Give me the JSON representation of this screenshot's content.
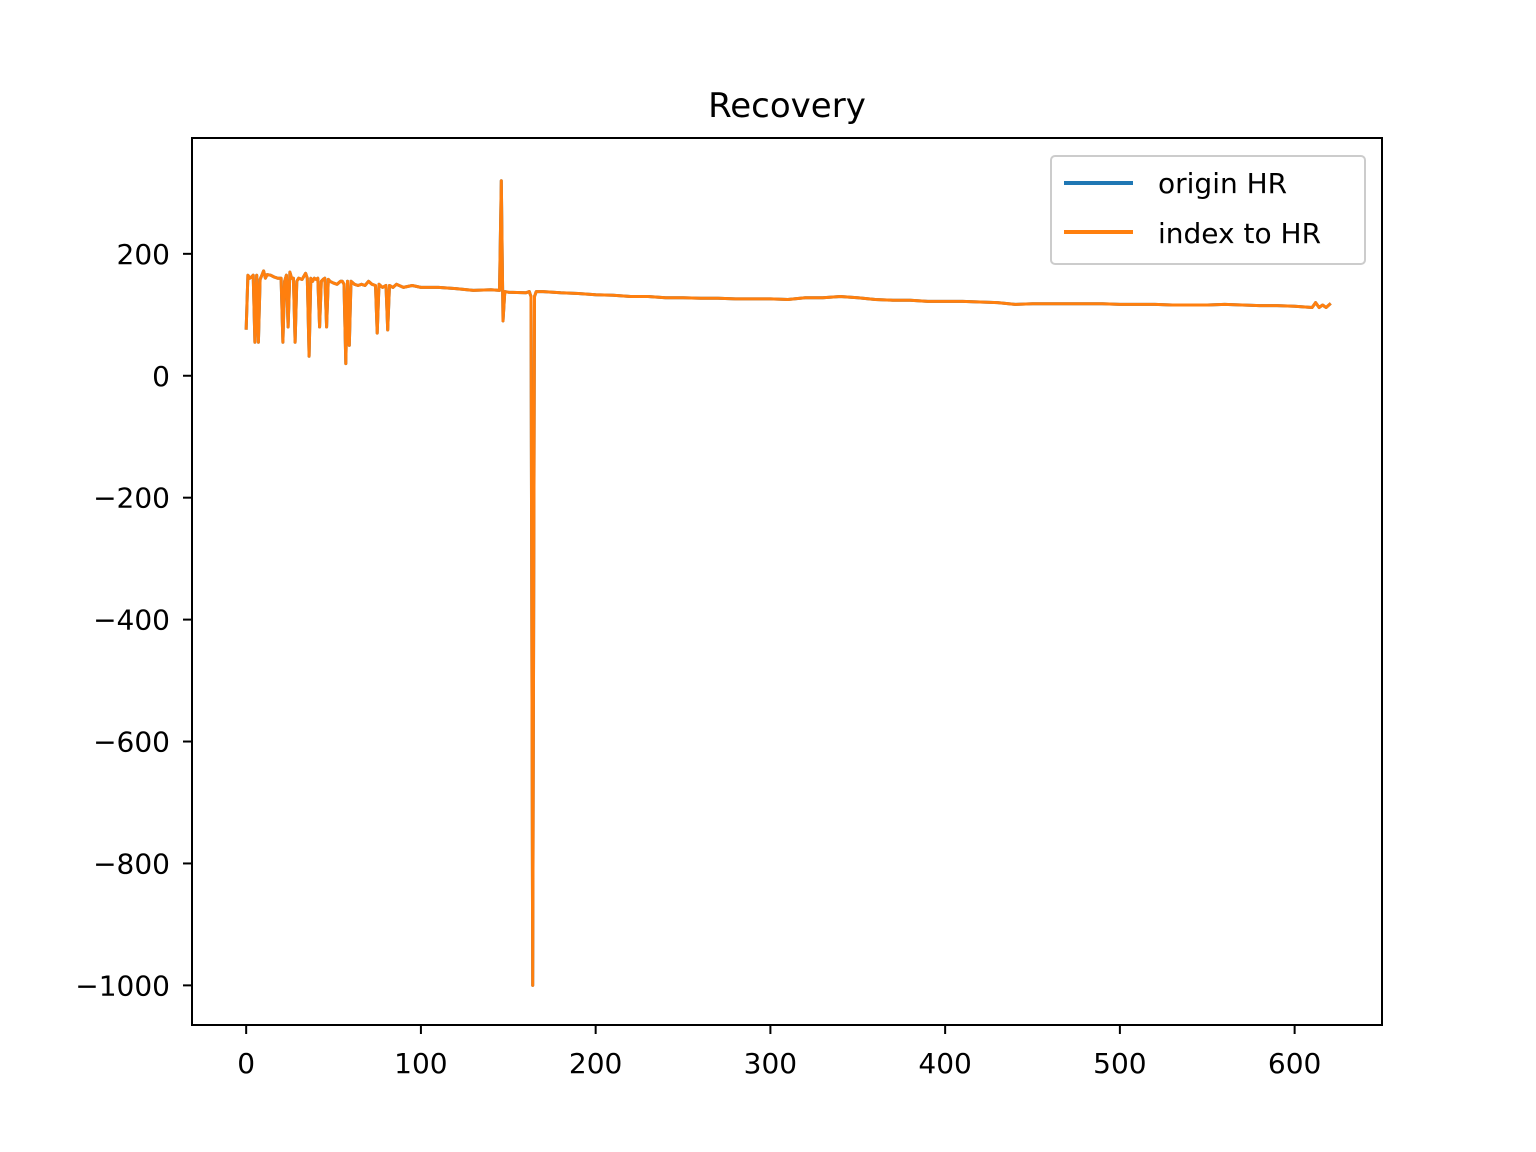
{
  "chart_data": {
    "type": "line",
    "title": "Recovery",
    "xlabel": "",
    "ylabel": "",
    "xlim": [
      -31,
      650
    ],
    "ylim": [
      -1065,
      390
    ],
    "xticks": [
      0,
      100,
      200,
      300,
      400,
      500,
      600
    ],
    "xtick_labels": [
      "0",
      "100",
      "200",
      "300",
      "400",
      "500",
      "600"
    ],
    "yticks": [
      -1000,
      -800,
      -600,
      -400,
      -200,
      0,
      200
    ],
    "ytick_labels": [
      "−1000",
      "−800",
      "−600",
      "−400",
      "−200",
      "0",
      "200"
    ],
    "grid": false,
    "legend_position": "top-right",
    "series": [
      {
        "name": "origin HR",
        "color": "#1f77b4",
        "x": [
          0,
          1,
          2,
          3,
          4,
          5,
          6,
          7,
          8,
          9,
          10,
          11,
          12,
          14,
          16,
          18,
          20,
          21,
          22,
          23,
          24,
          25,
          26,
          27,
          28,
          29,
          30,
          32,
          34,
          35,
          36,
          37,
          38,
          39,
          40,
          41,
          42,
          43,
          44,
          45,
          46,
          47,
          48,
          50,
          52,
          54,
          55,
          56,
          57,
          58,
          59,
          60,
          62,
          64,
          66,
          68,
          70,
          72,
          74,
          75,
          76,
          78,
          80,
          81,
          82,
          84,
          86,
          90,
          95,
          100,
          110,
          120,
          130,
          140,
          145,
          146,
          147,
          148,
          150,
          160,
          162,
          163,
          164,
          165,
          166,
          170,
          180,
          190,
          200,
          210,
          220,
          230,
          240,
          250,
          260,
          270,
          280,
          290,
          300,
          310,
          320,
          330,
          340,
          350,
          360,
          370,
          380,
          390,
          400,
          410,
          420,
          430,
          440,
          450,
          460,
          470,
          480,
          490,
          500,
          510,
          520,
          530,
          540,
          550,
          560,
          570,
          580,
          590,
          600,
          605,
          610,
          612,
          614,
          616,
          618,
          620
        ],
        "y": [
          78,
          165,
          160,
          162,
          165,
          55,
          165,
          55,
          158,
          165,
          172,
          160,
          166,
          165,
          162,
          160,
          160,
          55,
          155,
          165,
          80,
          170,
          160,
          160,
          55,
          155,
          160,
          158,
          168,
          160,
          32,
          160,
          155,
          160,
          158,
          160,
          80,
          155,
          158,
          160,
          80,
          158,
          155,
          152,
          150,
          155,
          155,
          150,
          20,
          155,
          50,
          155,
          150,
          148,
          150,
          148,
          155,
          150,
          148,
          70,
          150,
          145,
          148,
          75,
          148,
          145,
          150,
          145,
          148,
          145,
          145,
          143,
          140,
          141,
          140,
          320,
          90,
          138,
          137,
          136,
          138,
          130,
          -1000,
          130,
          138,
          138,
          136,
          135,
          133,
          132,
          130,
          130,
          128,
          128,
          127,
          127,
          126,
          126,
          126,
          125,
          128,
          128,
          130,
          128,
          125,
          124,
          124,
          122,
          122,
          122,
          121,
          120,
          117,
          118,
          118,
          118,
          118,
          118,
          117,
          117,
          117,
          116,
          116,
          116,
          117,
          116,
          115,
          115,
          114,
          113,
          112,
          120,
          112,
          116,
          112,
          117
        ]
      },
      {
        "name": "index to HR",
        "color": "#ff7f0e",
        "x": [
          0,
          1,
          2,
          3,
          4,
          5,
          6,
          7,
          8,
          9,
          10,
          11,
          12,
          14,
          16,
          18,
          20,
          21,
          22,
          23,
          24,
          25,
          26,
          27,
          28,
          29,
          30,
          32,
          34,
          35,
          36,
          37,
          38,
          39,
          40,
          41,
          42,
          43,
          44,
          45,
          46,
          47,
          48,
          50,
          52,
          54,
          55,
          56,
          57,
          58,
          59,
          60,
          62,
          64,
          66,
          68,
          70,
          72,
          74,
          75,
          76,
          78,
          80,
          81,
          82,
          84,
          86,
          90,
          95,
          100,
          110,
          120,
          130,
          140,
          145,
          146,
          147,
          148,
          150,
          160,
          162,
          163,
          164,
          165,
          166,
          170,
          180,
          190,
          200,
          210,
          220,
          230,
          240,
          250,
          260,
          270,
          280,
          290,
          300,
          310,
          320,
          330,
          340,
          350,
          360,
          370,
          380,
          390,
          400,
          410,
          420,
          430,
          440,
          450,
          460,
          470,
          480,
          490,
          500,
          510,
          520,
          530,
          540,
          550,
          560,
          570,
          580,
          590,
          600,
          605,
          610,
          612,
          614,
          616,
          618,
          620
        ],
        "y": [
          78,
          165,
          160,
          162,
          165,
          55,
          165,
          55,
          158,
          165,
          172,
          160,
          166,
          165,
          162,
          160,
          160,
          55,
          155,
          165,
          80,
          170,
          160,
          160,
          55,
          155,
          160,
          158,
          168,
          160,
          32,
          160,
          155,
          160,
          158,
          160,
          80,
          155,
          158,
          160,
          80,
          158,
          155,
          152,
          150,
          155,
          155,
          150,
          20,
          155,
          50,
          155,
          150,
          148,
          150,
          148,
          155,
          150,
          148,
          70,
          150,
          145,
          148,
          75,
          148,
          145,
          150,
          145,
          148,
          145,
          145,
          143,
          140,
          141,
          140,
          320,
          90,
          138,
          137,
          136,
          138,
          130,
          -1000,
          130,
          138,
          138,
          136,
          135,
          133,
          132,
          130,
          130,
          128,
          128,
          127,
          127,
          126,
          126,
          126,
          125,
          128,
          128,
          130,
          128,
          125,
          124,
          124,
          122,
          122,
          122,
          121,
          120,
          117,
          118,
          118,
          118,
          118,
          118,
          117,
          117,
          117,
          116,
          116,
          116,
          117,
          116,
          115,
          115,
          114,
          113,
          112,
          120,
          112,
          116,
          112,
          117
        ]
      }
    ]
  }
}
